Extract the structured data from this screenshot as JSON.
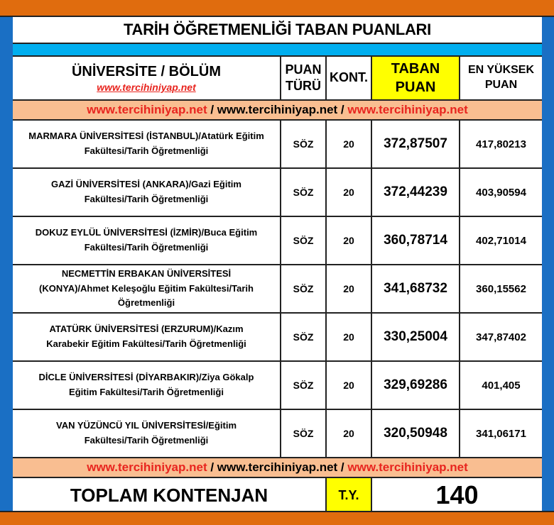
{
  "title": "TARİH ÖĞRETMENLİĞİ TABAN PUANLARI",
  "colors": {
    "orange": "#e06c0e",
    "blue": "#1a6fc4",
    "cyan": "#00aeef",
    "peach": "#f9be91",
    "yellow": "#ffff00",
    "red": "#e8251f"
  },
  "header": {
    "universite": "ÜNİVERSİTE / BÖLÜM",
    "site": "www.tercihiniyap.net",
    "puan_turu": [
      "PUAN",
      "TÜRÜ"
    ],
    "kont": "KONT.",
    "taban": [
      "TABAN",
      "PUAN"
    ],
    "en_yuksek": [
      "EN YÜKSEK",
      "PUAN"
    ]
  },
  "link_band": {
    "a": "www.tercihiniyap.net",
    "sep1": " / ",
    "b": "www.tercihiniyap.net",
    "sep2": " / ",
    "c": "www.tercihiniyap.net"
  },
  "rows": [
    {
      "name": "MARMARA ÜNİVERSİTESİ (İSTANBUL)/Atatürk Eğitim Fakültesi/Tarih Öğretmenliği",
      "type": "SÖZ",
      "kont": "20",
      "taban": "372,87507",
      "max": "417,80213"
    },
    {
      "name": "GAZİ ÜNİVERSİTESİ (ANKARA)/Gazi Eğitim Fakültesi/Tarih Öğretmenliği",
      "type": "SÖZ",
      "kont": "20",
      "taban": "372,44239",
      "max": "403,90594"
    },
    {
      "name": "DOKUZ EYLÜL ÜNİVERSİTESİ (İZMİR)/Buca Eğitim Fakültesi/Tarih Öğretmenliği",
      "type": "SÖZ",
      "kont": "20",
      "taban": "360,78714",
      "max": "402,71014"
    },
    {
      "name": "NECMETTİN ERBAKAN ÜNİVERSİTESİ (KONYA)/Ahmet Keleşoğlu Eğitim Fakültesi/Tarih Öğretmenliği",
      "type": "SÖZ",
      "kont": "20",
      "taban": "341,68732",
      "max": "360,15562"
    },
    {
      "name": "ATATÜRK ÜNİVERSİTESİ (ERZURUM)/Kazım Karabekir Eğitim Fakültesi/Tarih Öğretmenliği",
      "type": "SÖZ",
      "kont": "20",
      "taban": "330,25004",
      "max": "347,87402"
    },
    {
      "name": "DİCLE ÜNİVERSİTESİ (DİYARBAKIR)/Ziya Gökalp Eğitim Fakültesi/Tarih Öğretmenliği",
      "type": "SÖZ",
      "kont": "20",
      "taban": "329,69286",
      "max": "401,405"
    },
    {
      "name": "VAN YÜZÜNCÜ YIL ÜNİVERSİTESİ/Eğitim Fakültesi/Tarih Öğretmenliği",
      "type": "SÖZ",
      "kont": "20",
      "taban": "320,50948",
      "max": "341,06171"
    }
  ],
  "total": {
    "label": "TOPLAM KONTENJAN",
    "ty": "T.Y.",
    "value": "140"
  }
}
